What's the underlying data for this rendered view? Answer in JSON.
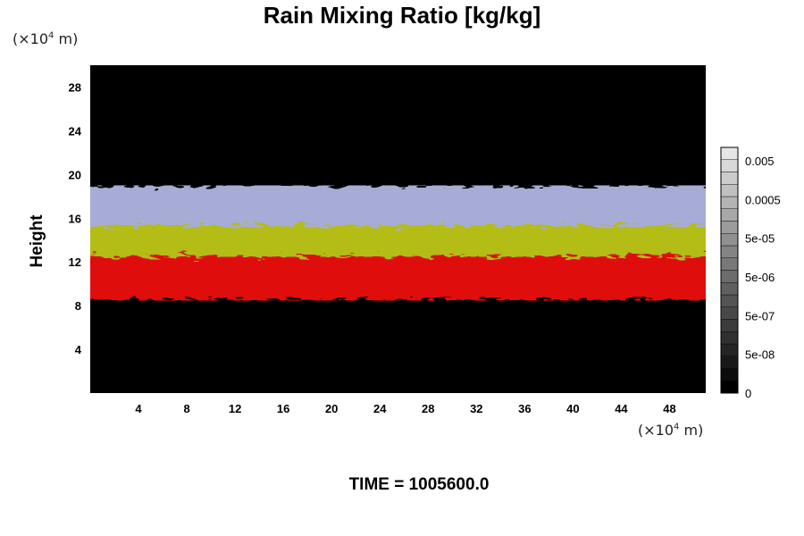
{
  "chart_data": {
    "type": "heatmap",
    "title": "Rain Mixing Ratio [kg/kg]",
    "ylabel": "Height",
    "x_unit_label": "(×10⁴ m)",
    "y_unit_label": "(×10⁴ m)",
    "x_ticks": [
      4,
      8,
      12,
      16,
      20,
      24,
      28,
      32,
      36,
      40,
      44,
      48
    ],
    "y_ticks": [
      4,
      8,
      12,
      16,
      20,
      24,
      28
    ],
    "xlim": [
      0,
      51
    ],
    "ylim": [
      0,
      30
    ],
    "grid": false,
    "background_color": "#000000",
    "layers": [
      {
        "y_bottom": 8.5,
        "y_top": 12.5,
        "color": "#e01010"
      },
      {
        "y_bottom": 12.5,
        "y_top": 15.8,
        "color": "#b4bc12"
      },
      {
        "y_bottom": 15.3,
        "y_top": 19.0,
        "color": "#a6acd6"
      }
    ],
    "colorbar": {
      "tick_labels": [
        "0.005",
        "0.0005",
        "5e-05",
        "5e-06",
        "5e-07",
        "5e-08",
        "0"
      ],
      "position": "right"
    },
    "footer": "TIME = 1005600.0"
  }
}
